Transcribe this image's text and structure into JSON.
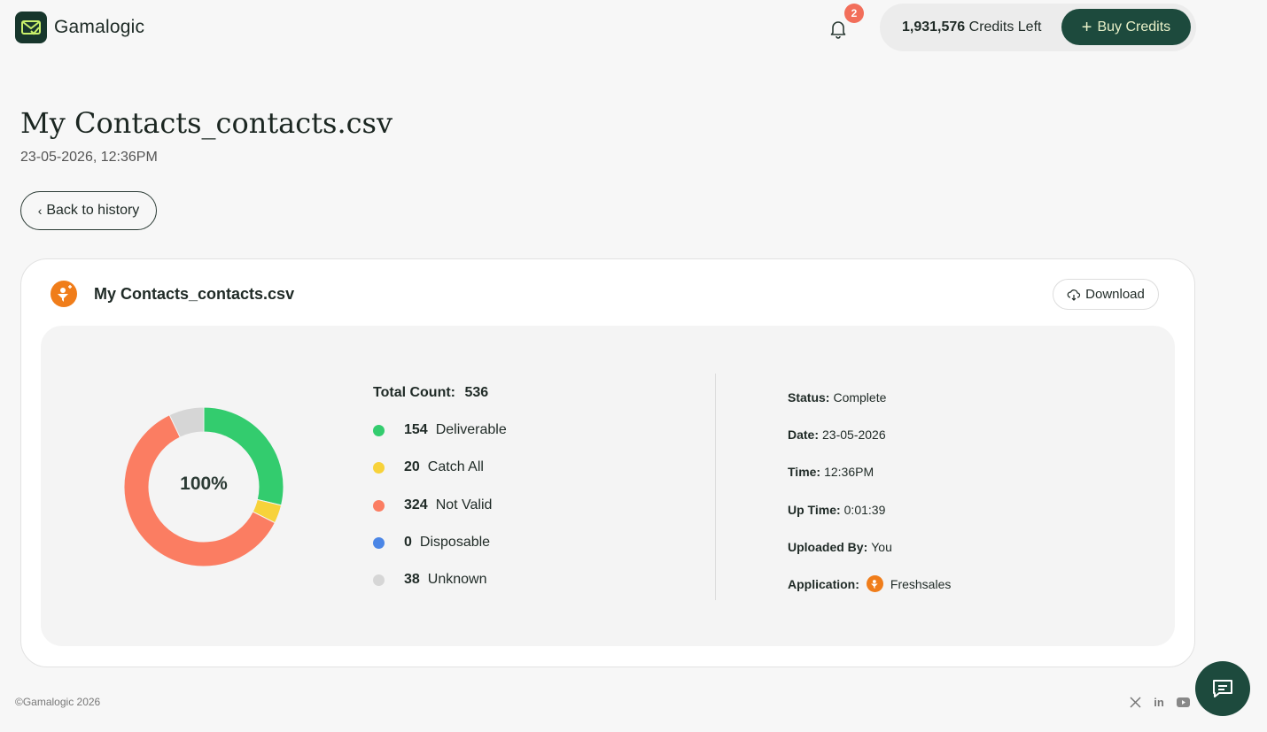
{
  "header": {
    "brand": "Gamalogic",
    "notifications_count": "2",
    "credits_amount": "1,931,576",
    "credits_suffix": "Credits Left",
    "buy_label": "Buy Credits"
  },
  "page": {
    "title": "My Contacts_contacts.csv",
    "datetime": "23-05-2026, 12:36PM",
    "back_label": "Back to history"
  },
  "card": {
    "file_name": "My Contacts_contacts.csv",
    "download_label": "Download",
    "donut_center": "100%",
    "total_label": "Total Count:",
    "total_value": "536",
    "legend": [
      {
        "count": "154",
        "label": "Deliverable",
        "color": "#33cc6e",
        "value": 154
      },
      {
        "count": "20",
        "label": "Catch All",
        "color": "#f7d23a",
        "value": 20
      },
      {
        "count": "324",
        "label": "Not Valid",
        "color": "#fb7d62",
        "value": 324
      },
      {
        "count": "0",
        "label": "Disposable",
        "color": "#4b86e6",
        "value": 0
      },
      {
        "count": "38",
        "label": "Unknown",
        "color": "#d6d6d6",
        "value": 38
      }
    ],
    "info": {
      "status_label": "Status:",
      "status_value": "Complete",
      "date_label": "Date:",
      "date_value": "23-05-2026",
      "time_label": "Time:",
      "time_value": "12:36PM",
      "uptime_label": "Up Time:",
      "uptime_value": "0:01:39",
      "uploaded_label": "Uploaded By:",
      "uploaded_value": "You",
      "application_label": "Application:",
      "application_value": "Freshsales"
    }
  },
  "footer": {
    "copyright": "©Gamalogic 2026",
    "social_icons": [
      "x-icon",
      "linkedin-icon",
      "youtube-icon"
    ]
  },
  "colors": {
    "brand_dark": "#1d4a3d",
    "badge": "#f26e5a",
    "freshsales_orange": "#f07d1a"
  }
}
